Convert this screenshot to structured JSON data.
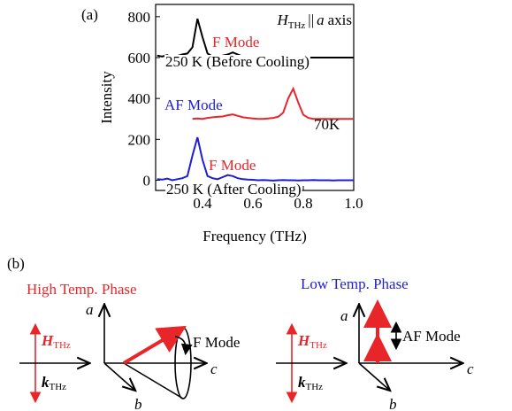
{
  "chart_data": {
    "type": "line",
    "panel_label": "(a)",
    "title": {
      "h": "H",
      "sub": "THz",
      "par": "||",
      "axis_name": "a",
      "rest": "axis"
    },
    "x_label": "Frequency (THz)",
    "y_label": "Intensity",
    "x": [
      0.22,
      0.24,
      0.26,
      0.28,
      0.3,
      0.32,
      0.34,
      0.36,
      0.38,
      0.4,
      0.42,
      0.44,
      0.46,
      0.48,
      0.5,
      0.52,
      0.54,
      0.56,
      0.58,
      0.6,
      0.62,
      0.64,
      0.66,
      0.68,
      0.7,
      0.72,
      0.74,
      0.76,
      0.78,
      0.8,
      0.82,
      0.84,
      0.86,
      0.88,
      0.9,
      0.92,
      0.94,
      0.96,
      0.98,
      1.0
    ],
    "series": [
      {
        "name": "250 K (Before Cooling)",
        "color": "#000000",
        "values": [
          610,
          605,
          612,
          600,
          608,
          615,
          620,
          650,
          790,
          700,
          620,
          605,
          600,
          610,
          615,
          625,
          615,
          605,
          600,
          598,
          600,
          602,
          600,
          598,
          600,
          600,
          600,
          600,
          600,
          600,
          600,
          600,
          600,
          600,
          600,
          600,
          600,
          600,
          600,
          600
        ]
      },
      {
        "name": "70K",
        "color": "#e8262a",
        "values": [
          null,
          null,
          null,
          null,
          null,
          null,
          null,
          300,
          302,
          300,
          305,
          308,
          310,
          312,
          318,
          322,
          315,
          308,
          305,
          302,
          300,
          300,
          302,
          305,
          310,
          330,
          400,
          448,
          380,
          320,
          305,
          300,
          300,
          300,
          300,
          300,
          300,
          300,
          300,
          300
        ]
      },
      {
        "name": "250 K (After Cooling)",
        "color": "#1f1fcf",
        "values": [
          5,
          3,
          8,
          0,
          5,
          10,
          20,
          120,
          210,
          100,
          20,
          10,
          5,
          15,
          25,
          20,
          10,
          5,
          3,
          2,
          0,
          1,
          0,
          -2,
          0,
          1,
          0,
          0,
          -1,
          0,
          0,
          1,
          0,
          0,
          0,
          -1,
          0,
          0,
          0,
          0
        ]
      }
    ],
    "annotations": [
      {
        "text": "F Mode",
        "color": "#e8262a"
      },
      {
        "text": "AF Mode",
        "color": "#1f1fcf"
      },
      {
        "text": "F Mode",
        "color": "#e8262a"
      }
    ],
    "xlim": [
      0.214,
      1.0
    ],
    "ylim": [
      -50,
      860
    ],
    "xticks": [
      0.4,
      0.6,
      0.8,
      {
        "value": 1,
        "label": "1.0"
      }
    ],
    "yticks": [
      0,
      200,
      400,
      600,
      800
    ]
  },
  "diagram": {
    "panel_label": "(b)",
    "high": {
      "title": "High Temp. Phase",
      "h": "H",
      "h_sub": "THz",
      "k": "k",
      "k_sub": "THz",
      "a": "a",
      "b": "b",
      "c": "c",
      "mode": "F Mode"
    },
    "low": {
      "title": "Low Temp. Phase",
      "h": "H",
      "h_sub": "THz",
      "k": "k",
      "k_sub": "THz",
      "a": "a",
      "b": "b",
      "c": "c",
      "mode": "AF Mode"
    }
  }
}
